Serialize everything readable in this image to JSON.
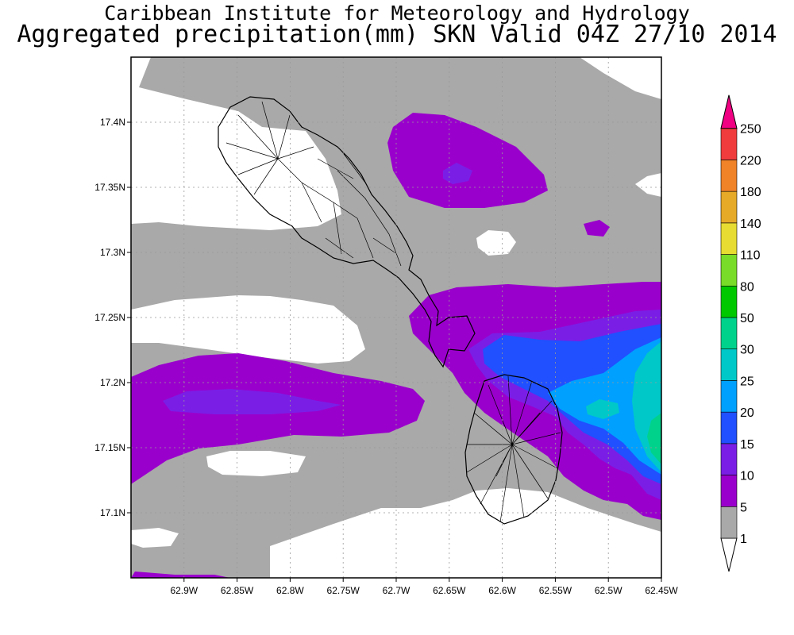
{
  "titles": {
    "line1": "Caribbean Institute for Meteorology and Hydrology",
    "line2": "Aggregated precipitation(mm) SKN Valid 04Z 27/10 2014"
  },
  "map": {
    "lon_range": [
      -62.95,
      -62.45
    ],
    "lat_range": [
      17.05,
      17.45
    ],
    "lon_ticks": [
      {
        "value": -62.9,
        "label": "62.9W"
      },
      {
        "value": -62.85,
        "label": "62.85W"
      },
      {
        "value": -62.8,
        "label": "62.8W"
      },
      {
        "value": -62.75,
        "label": "62.75W"
      },
      {
        "value": -62.7,
        "label": "62.7W"
      },
      {
        "value": -62.65,
        "label": "62.65W"
      },
      {
        "value": -62.6,
        "label": "62.6W"
      },
      {
        "value": -62.55,
        "label": "62.55W"
      },
      {
        "value": -62.5,
        "label": "62.5W"
      },
      {
        "value": -62.45,
        "label": "62.45W"
      }
    ],
    "lat_ticks": [
      {
        "value": 17.4,
        "label": "17.4N"
      },
      {
        "value": 17.35,
        "label": "17.35N"
      },
      {
        "value": 17.3,
        "label": "17.3N"
      },
      {
        "value": 17.25,
        "label": "17.25N"
      },
      {
        "value": 17.2,
        "label": "17.2N"
      },
      {
        "value": 17.15,
        "label": "17.15N"
      },
      {
        "value": 17.1,
        "label": "17.1N"
      }
    ],
    "grid": "dotted"
  },
  "colorbar": {
    "levels": [
      "1",
      "5",
      "10",
      "15",
      "20",
      "25",
      "30",
      "50",
      "80",
      "110",
      "140",
      "180",
      "220",
      "250"
    ],
    "colors": [
      "#a9a9a9",
      "#9a00cc",
      "#7a1ee6",
      "#2050ff",
      "#00a0ff",
      "#00c8c8",
      "#00d28c",
      "#00c800",
      "#78dc28",
      "#e6dc32",
      "#e6aa28",
      "#f08228",
      "#f03c3c",
      "#f00082"
    ],
    "below_color": "#ffffff"
  },
  "fields": {
    "land_outline": "#000000"
  }
}
